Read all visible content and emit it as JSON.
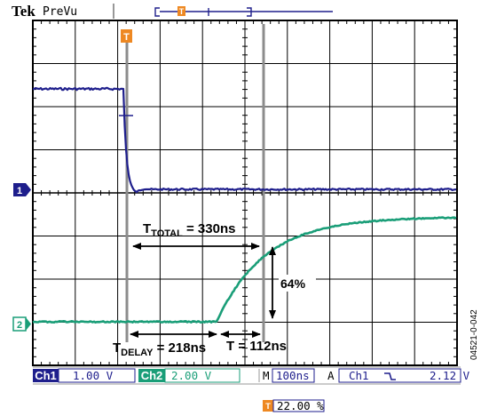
{
  "header": {
    "brand": "Tek",
    "mode": "PreVu",
    "trigger_marker": "T"
  },
  "waveforms": {
    "ch1_marker": "1",
    "ch2_marker": "2",
    "ch1_color": "#1e1e8c",
    "ch2_color": "#1a9e78"
  },
  "annotations": {
    "t_total": {
      "main": "T",
      "sub": "TOTAL",
      "rest": " = 330ns"
    },
    "t_delay": {
      "main": "T",
      "sub": "DELAY",
      "rest": " = 218ns"
    },
    "t_rise": {
      "text": "T = 112ns"
    },
    "pct": {
      "text": "64%"
    }
  },
  "status_bar": {
    "ch1_label": "Ch1",
    "ch1_scale": "1.00 V",
    "ch2_label": "Ch2",
    "ch2_scale": "2.00 V",
    "m_label": "M",
    "timebase": "100ns",
    "a_label": "A",
    "trig_source": "Ch1",
    "trig_slope_icon": "falling-edge-icon",
    "trig_slope_glyph": "ⲩ",
    "trig_level": "2.12 V"
  },
  "trigger_position": {
    "marker": "T",
    "value": "22.00 %"
  },
  "figure_id": "04521-0-042"
}
